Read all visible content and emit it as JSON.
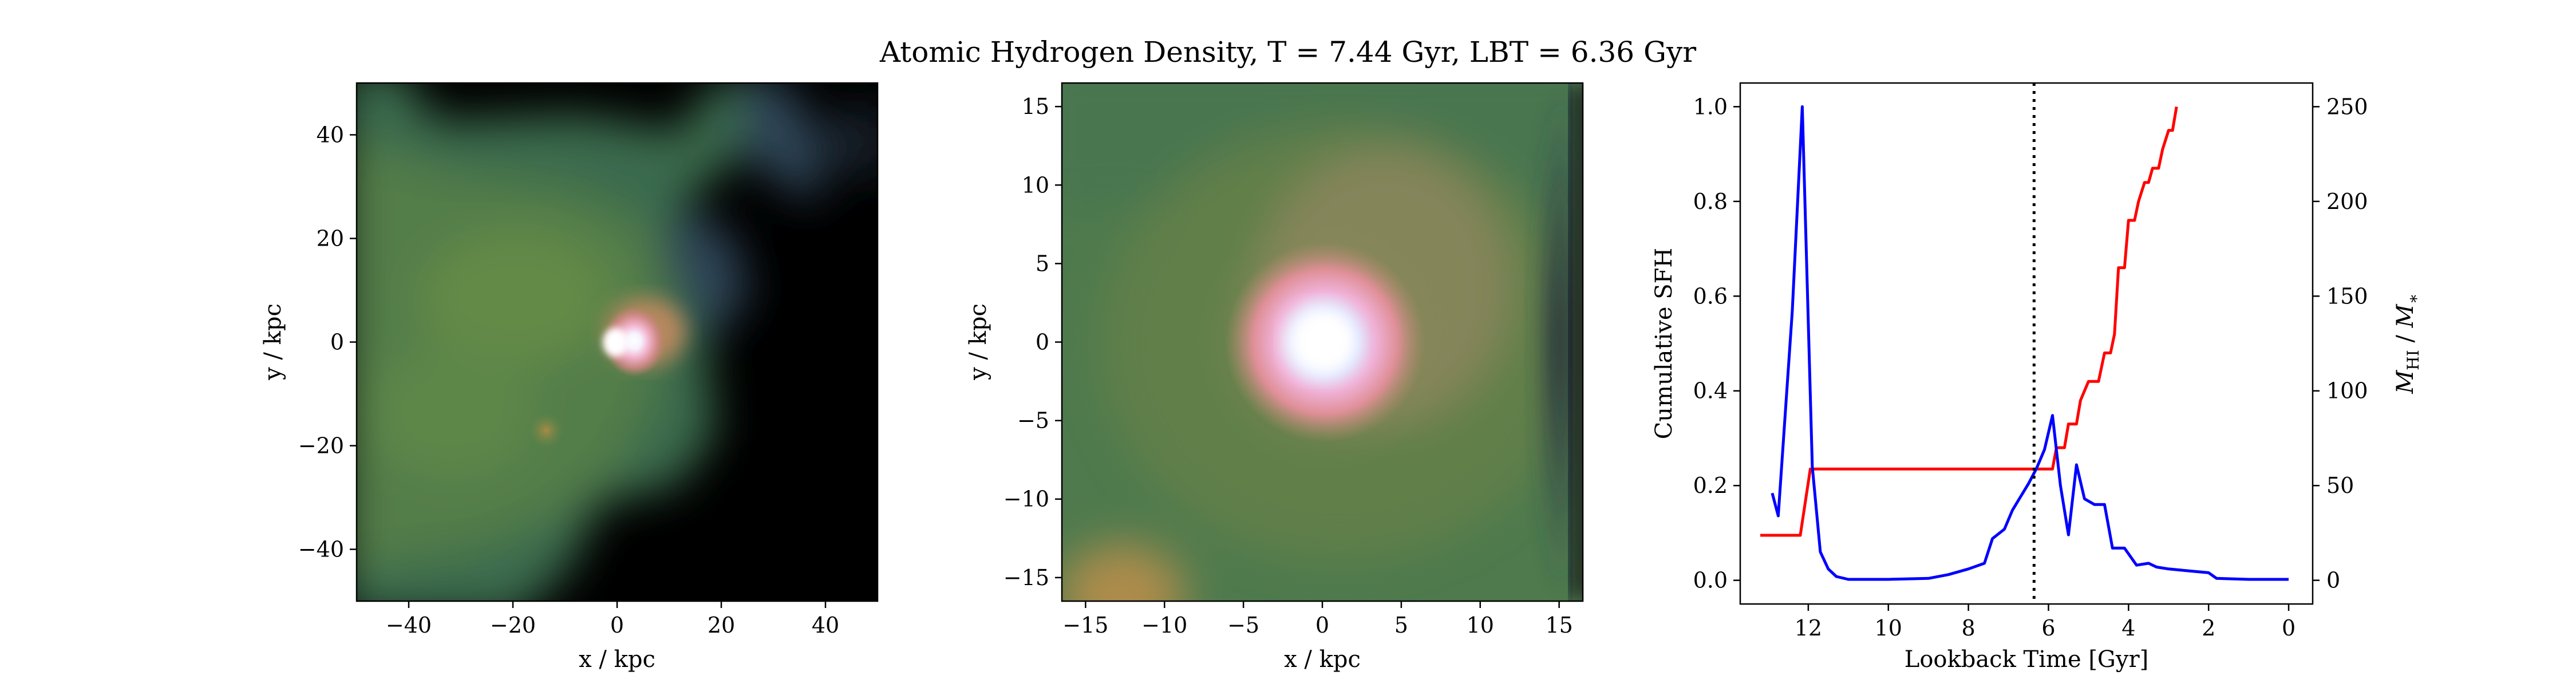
{
  "figure_title": "Atomic Hydrogen Density, T = 7.44 Gyr, LBT = 6.36 Gyr",
  "colors": {
    "sfh_line": "#ff0000",
    "ratio_line": "#0000ff",
    "marker_line": "#000000",
    "colormap": [
      "#000000",
      "#2c3a4c",
      "#3d6b4f",
      "#6a8a43",
      "#c98a72",
      "#f2b9c8",
      "#ffffff"
    ]
  },
  "chart_data": [
    {
      "type": "heatmap",
      "title": "",
      "xlabel": "x / kpc",
      "ylabel": "y / kpc",
      "xlim": [
        -50,
        50
      ],
      "ylim": [
        -50,
        50
      ],
      "xticks": [
        "−40",
        "−20",
        "0",
        "20",
        "40"
      ],
      "yticks": [
        "40",
        "20",
        "0",
        "−20",
        "−40"
      ],
      "features": [
        {
          "label": "central bright core",
          "x": 0,
          "y": 0
        },
        {
          "label": "secondary clump",
          "x": -13,
          "y": -17
        }
      ]
    },
    {
      "type": "heatmap",
      "title": "",
      "xlabel": "x / kpc",
      "ylabel": "y / kpc",
      "xlim": [
        -16.5,
        16.5
      ],
      "ylim": [
        -16.5,
        16.5
      ],
      "xticks": [
        "−15",
        "−10",
        "−5",
        "0",
        "5",
        "10",
        "15"
      ],
      "yticks": [
        "15",
        "10",
        "5",
        "0",
        "−5",
        "−10",
        "−15"
      ],
      "features": [
        {
          "label": "central bright core",
          "x": 0,
          "y": 0
        }
      ]
    },
    {
      "type": "line",
      "title": "",
      "xlabel": "Lookback Time [Gyr]",
      "ylabel": "Cumulative SFH",
      "y2label": "M_HI / M_*",
      "xlim": [
        13.7,
        -0.6
      ],
      "ylim": [
        -0.05,
        1.05
      ],
      "y2lim": [
        -12.5,
        262.5
      ],
      "xticks": [
        "12",
        "10",
        "8",
        "6",
        "4",
        "2",
        "0"
      ],
      "yticks": [
        "0.0",
        "0.2",
        "0.4",
        "0.6",
        "0.8",
        "1.0"
      ],
      "y2ticks": [
        "0",
        "50",
        "100",
        "150",
        "200",
        "250"
      ],
      "vline_x": 6.36,
      "series": [
        {
          "axis": "left",
          "color": "#ff0000",
          "points": [
            [
              13.2,
              0.095
            ],
            [
              12.2,
              0.095
            ],
            [
              11.95,
              0.235
            ],
            [
              10,
              0.235
            ],
            [
              8,
              0.235
            ],
            [
              6.2,
              0.235
            ],
            [
              5.9,
              0.235
            ],
            [
              5.8,
              0.28
            ],
            [
              5.6,
              0.28
            ],
            [
              5.5,
              0.33
            ],
            [
              5.3,
              0.33
            ],
            [
              5.2,
              0.38
            ],
            [
              5.0,
              0.42
            ],
            [
              4.75,
              0.42
            ],
            [
              4.6,
              0.48
            ],
            [
              4.45,
              0.48
            ],
            [
              4.35,
              0.52
            ],
            [
              4.25,
              0.66
            ],
            [
              4.1,
              0.66
            ],
            [
              4.0,
              0.76
            ],
            [
              3.85,
              0.76
            ],
            [
              3.75,
              0.8
            ],
            [
              3.6,
              0.84
            ],
            [
              3.5,
              0.84
            ],
            [
              3.4,
              0.87
            ],
            [
              3.25,
              0.87
            ],
            [
              3.15,
              0.91
            ],
            [
              3.0,
              0.95
            ],
            [
              2.9,
              0.95
            ],
            [
              2.8,
              1.0
            ]
          ]
        },
        {
          "axis": "right",
          "color": "#0000ff",
          "points": [
            [
              12.9,
              46
            ],
            [
              12.75,
              34
            ],
            [
              12.4,
              142
            ],
            [
              12.15,
              250
            ],
            [
              11.9,
              60
            ],
            [
              11.7,
              15
            ],
            [
              11.5,
              6
            ],
            [
              11.3,
              2
            ],
            [
              11,
              0.5
            ],
            [
              10,
              0.5
            ],
            [
              9,
              1
            ],
            [
              8.5,
              3
            ],
            [
              8,
              6
            ],
            [
              7.6,
              9
            ],
            [
              7.4,
              22
            ],
            [
              7.1,
              27
            ],
            [
              6.9,
              37
            ],
            [
              6.7,
              44
            ],
            [
              6.5,
              51
            ],
            [
              6.3,
              59
            ],
            [
              6.1,
              69
            ],
            [
              5.9,
              87
            ],
            [
              5.7,
              50
            ],
            [
              5.5,
              24
            ],
            [
              5.3,
              61
            ],
            [
              5.1,
              43
            ],
            [
              4.85,
              40
            ],
            [
              4.6,
              40
            ],
            [
              4.4,
              17
            ],
            [
              4.1,
              17
            ],
            [
              3.8,
              8
            ],
            [
              3.5,
              9
            ],
            [
              3.3,
              7
            ],
            [
              3.0,
              6
            ],
            [
              2.5,
              5
            ],
            [
              2.0,
              4
            ],
            [
              1.8,
              1
            ],
            [
              1,
              0.5
            ],
            [
              0,
              0.5
            ]
          ]
        }
      ]
    }
  ]
}
